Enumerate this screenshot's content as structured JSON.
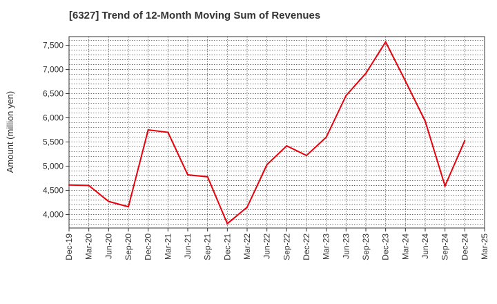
{
  "chart_data": {
    "type": "line",
    "title": "[6327]  Trend of 12-Month Moving Sum of Revenues",
    "ylabel": "Amount (million yen)",
    "xlabel": "",
    "ylim": [
      3720,
      7680
    ],
    "y_ticks": [
      "4,000",
      "4,500",
      "5,000",
      "5,500",
      "6,000",
      "6,500",
      "7,000",
      "7,500"
    ],
    "y_tick_values": [
      4000,
      4500,
      5000,
      5500,
      6000,
      6500,
      7000,
      7500
    ],
    "categories": [
      "Dec-19",
      "Mar-20",
      "Jun-20",
      "Sep-20",
      "Dec-20",
      "Mar-21",
      "Jun-21",
      "Sep-21",
      "Dec-21",
      "Mar-22",
      "Jun-22",
      "Sep-22",
      "Dec-22",
      "Mar-23",
      "Jun-23",
      "Sep-23",
      "Dec-23",
      "Mar-24",
      "Jun-24",
      "Sep-24",
      "Dec-24",
      "Mar-25"
    ],
    "series": [
      {
        "color": "#e8000b",
        "values": [
          4610,
          4600,
          4270,
          4160,
          5750,
          5700,
          4820,
          4780,
          3810,
          4150,
          5030,
          5420,
          5220,
          5600,
          6460,
          6920,
          7570,
          6760,
          5930,
          4590,
          5530,
          null
        ]
      }
    ],
    "grid": true,
    "legend": "none"
  }
}
